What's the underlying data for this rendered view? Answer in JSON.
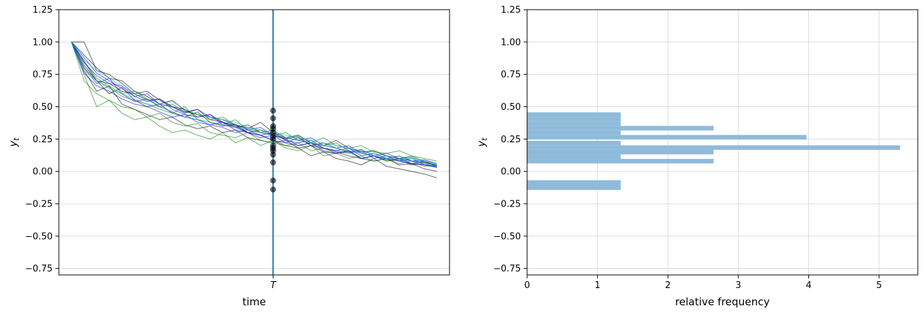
{
  "chart_data": [
    {
      "type": "line",
      "xlabel": "time",
      "ylabel": "y",
      "ylabel_subscript": "t",
      "ylim": [
        -0.8,
        1.25
      ],
      "yticks": [
        1.25,
        1.0,
        0.75,
        0.5,
        0.25,
        0.0,
        -0.25,
        -0.5,
        -0.75
      ],
      "ytick_labels": [
        "1.25",
        "1.00",
        "0.75",
        "0.50",
        "0.25",
        "0.00",
        "−0.25",
        "−0.50",
        "−0.75"
      ],
      "xticks": [
        {
          "x": 16,
          "label": "T"
        }
      ],
      "xlim": [
        -1,
        30
      ],
      "grid": "horizontal",
      "vline": {
        "x": 16,
        "color": "#1f77b4"
      },
      "series_colors": [
        "#000000",
        "#008000",
        "#0000ff",
        "#00bfbf"
      ],
      "series": [
        {
          "color": "#000000",
          "values": [
            1.0,
            1.0,
            0.78,
            0.75,
            0.68,
            0.6,
            0.62,
            0.55,
            0.5,
            0.48,
            0.42,
            0.44,
            0.38,
            0.35,
            0.3,
            0.28,
            0.24,
            0.2,
            0.18,
            0.12,
            0.15,
            0.1,
            0.08,
            0.05,
            0.1,
            0.04,
            0.02,
            0.0,
            -0.02,
            -0.05
          ]
        },
        {
          "color": "#000000",
          "values": [
            1.0,
            0.85,
            0.7,
            0.6,
            0.65,
            0.55,
            0.5,
            0.52,
            0.45,
            0.42,
            0.46,
            0.38,
            0.35,
            0.36,
            0.3,
            0.32,
            0.28,
            0.25,
            0.2,
            0.22,
            0.18,
            0.15,
            0.12,
            0.1,
            0.08,
            0.1,
            0.05,
            0.06,
            0.02,
            0.0
          ]
        },
        {
          "color": "#000000",
          "values": [
            1.0,
            0.78,
            0.62,
            0.66,
            0.52,
            0.48,
            0.44,
            0.4,
            0.42,
            0.36,
            0.33,
            0.35,
            0.3,
            0.32,
            0.26,
            0.24,
            0.22,
            0.24,
            0.18,
            0.2,
            0.15,
            0.14,
            0.16,
            0.1,
            0.12,
            0.08,
            0.09,
            0.05,
            0.06,
            0.03
          ]
        },
        {
          "color": "#000000",
          "values": [
            1.0,
            0.82,
            0.7,
            0.68,
            0.62,
            0.6,
            0.55,
            0.56,
            0.5,
            0.45,
            0.48,
            0.4,
            0.38,
            0.34,
            0.36,
            0.3,
            0.28,
            0.25,
            0.27,
            0.2,
            0.22,
            0.18,
            0.15,
            0.17,
            0.12,
            0.1,
            0.12,
            0.08,
            0.07,
            0.05
          ]
        },
        {
          "color": "#000000",
          "values": [
            1.0,
            0.9,
            0.8,
            0.72,
            0.7,
            0.62,
            0.58,
            0.52,
            0.55,
            0.47,
            0.44,
            0.42,
            0.4,
            0.36,
            0.33,
            0.38,
            0.3,
            0.26,
            0.28,
            0.22,
            0.2,
            0.24,
            0.18,
            0.15,
            0.16,
            0.12,
            0.1,
            0.11,
            0.07,
            0.05
          ]
        },
        {
          "color": "#008000",
          "values": [
            1.0,
            0.75,
            0.5,
            0.55,
            0.45,
            0.4,
            0.42,
            0.35,
            0.3,
            0.32,
            0.28,
            0.25,
            0.3,
            0.22,
            0.26,
            0.2,
            0.24,
            0.18,
            0.16,
            0.2,
            0.12,
            0.14,
            0.1,
            0.12,
            0.08,
            0.1,
            0.06,
            0.08,
            0.04,
            0.05
          ]
        },
        {
          "color": "#008000",
          "values": [
            1.0,
            0.8,
            0.7,
            0.65,
            0.58,
            0.55,
            0.52,
            0.48,
            0.45,
            0.5,
            0.4,
            0.38,
            0.36,
            0.4,
            0.32,
            0.3,
            0.28,
            0.3,
            0.24,
            0.22,
            0.26,
            0.2,
            0.18,
            0.2,
            0.15,
            0.14,
            0.16,
            0.12,
            0.1,
            0.08
          ]
        },
        {
          "color": "#008000",
          "values": [
            1.0,
            0.7,
            0.6,
            0.55,
            0.5,
            0.48,
            0.42,
            0.45,
            0.38,
            0.35,
            0.37,
            0.3,
            0.28,
            0.26,
            0.3,
            0.24,
            0.22,
            0.2,
            0.22,
            0.16,
            0.18,
            0.14,
            0.15,
            0.1,
            0.12,
            0.08,
            0.1,
            0.06,
            0.07,
            0.04
          ]
        },
        {
          "color": "#008000",
          "values": [
            1.0,
            0.85,
            0.72,
            0.66,
            0.6,
            0.62,
            0.56,
            0.5,
            0.52,
            0.46,
            0.44,
            0.4,
            0.42,
            0.36,
            0.34,
            0.3,
            0.32,
            0.26,
            0.28,
            0.22,
            0.2,
            0.22,
            0.16,
            0.14,
            0.16,
            0.12,
            0.1,
            0.12,
            0.08,
            0.06
          ]
        },
        {
          "color": "#0000ff",
          "values": [
            1.0,
            0.88,
            0.76,
            0.7,
            0.64,
            0.58,
            0.6,
            0.52,
            0.5,
            0.46,
            0.48,
            0.42,
            0.38,
            0.36,
            0.32,
            0.34,
            0.28,
            0.26,
            0.24,
            0.26,
            0.2,
            0.18,
            0.2,
            0.14,
            0.12,
            0.14,
            0.1,
            0.08,
            0.09,
            0.06
          ]
        },
        {
          "color": "#0000ff",
          "values": [
            1.0,
            0.76,
            0.66,
            0.62,
            0.56,
            0.52,
            0.5,
            0.46,
            0.42,
            0.44,
            0.38,
            0.36,
            0.34,
            0.3,
            0.32,
            0.28,
            0.24,
            0.22,
            0.26,
            0.2,
            0.18,
            0.16,
            0.18,
            0.12,
            0.14,
            0.1,
            0.08,
            0.1,
            0.05,
            0.04
          ]
        },
        {
          "color": "#0000ff",
          "values": [
            1.0,
            0.84,
            0.74,
            0.68,
            0.66,
            0.58,
            0.54,
            0.56,
            0.48,
            0.44,
            0.42,
            0.44,
            0.36,
            0.34,
            0.3,
            0.28,
            0.3,
            0.24,
            0.22,
            0.24,
            0.18,
            0.16,
            0.14,
            0.16,
            0.1,
            0.12,
            0.08,
            0.06,
            0.08,
            0.04
          ]
        },
        {
          "color": "#0000ff",
          "values": [
            1.0,
            0.8,
            0.68,
            0.72,
            0.6,
            0.54,
            0.56,
            0.5,
            0.46,
            0.42,
            0.4,
            0.36,
            0.38,
            0.32,
            0.3,
            0.26,
            0.28,
            0.22,
            0.2,
            0.22,
            0.16,
            0.14,
            0.16,
            0.1,
            0.12,
            0.09,
            0.1,
            0.06,
            0.05,
            0.03
          ]
        },
        {
          "color": "#00bfbf",
          "values": [
            1.0,
            0.86,
            0.78,
            0.72,
            0.66,
            0.6,
            0.56,
            0.52,
            0.54,
            0.48,
            0.44,
            0.42,
            0.4,
            0.38,
            0.34,
            0.32,
            0.3,
            0.28,
            0.26,
            0.24,
            0.22,
            0.2,
            0.18,
            0.16,
            0.14,
            0.12,
            0.1,
            0.1,
            0.08,
            0.06
          ]
        },
        {
          "color": "#00bfbf",
          "values": [
            1.0,
            0.78,
            0.7,
            0.64,
            0.6,
            0.56,
            0.52,
            0.5,
            0.46,
            0.42,
            0.4,
            0.38,
            0.36,
            0.34,
            0.32,
            0.3,
            0.28,
            0.26,
            0.24,
            0.22,
            0.2,
            0.18,
            0.16,
            0.14,
            0.12,
            0.1,
            0.09,
            0.08,
            0.06,
            0.05
          ]
        }
      ],
      "points_at_T": [
        0.47,
        0.41,
        0.35,
        0.33,
        0.3,
        0.27,
        0.25,
        0.2,
        0.18,
        0.16,
        0.13,
        0.07,
        -0.07,
        -0.14
      ]
    },
    {
      "type": "bar",
      "orientation": "horizontal",
      "xlabel": "relative frequency",
      "ylabel": "y",
      "ylabel_subscript": "t",
      "ylim": [
        -0.8,
        1.25
      ],
      "xlim": [
        0,
        5.55
      ],
      "xticks": [
        0,
        1,
        2,
        3,
        4,
        5
      ],
      "xtick_labels": [
        "0",
        "1",
        "2",
        "3",
        "4",
        "5"
      ],
      "yticks": [
        1.25,
        1.0,
        0.75,
        0.5,
        0.25,
        0.0,
        -0.25,
        -0.5,
        -0.75
      ],
      "ytick_labels": [
        "1.25",
        "1.00",
        "0.75",
        "0.50",
        "0.25",
        "0.00",
        "−0.25",
        "−0.50",
        "−0.75"
      ],
      "grid": "both",
      "bar_color": "#8fbbda",
      "bins": [
        {
          "y0": -0.1433,
          "y1": -0.0683,
          "value": 1.33
        },
        {
          "y0": 0.0617,
          "y1": 0.0967,
          "value": 2.65
        },
        {
          "y0": 0.0967,
          "y1": 0.1317,
          "value": 1.33
        },
        {
          "y0": 0.1317,
          "y1": 0.1667,
          "value": 2.65
        },
        {
          "y0": 0.1667,
          "y1": 0.2017,
          "value": 5.3
        },
        {
          "y0": 0.2017,
          "y1": 0.2367,
          "value": 1.33
        },
        {
          "y0": 0.2467,
          "y1": 0.2817,
          "value": 3.97
        },
        {
          "y0": 0.2817,
          "y1": 0.3167,
          "value": 1.33
        },
        {
          "y0": 0.3167,
          "y1": 0.3517,
          "value": 2.65
        },
        {
          "y0": 0.3517,
          "y1": 0.3867,
          "value": 1.33
        },
        {
          "y0": 0.3867,
          "y1": 0.4217,
          "value": 1.33
        },
        {
          "y0": 0.4217,
          "y1": 0.4567,
          "value": 1.33
        }
      ]
    }
  ]
}
